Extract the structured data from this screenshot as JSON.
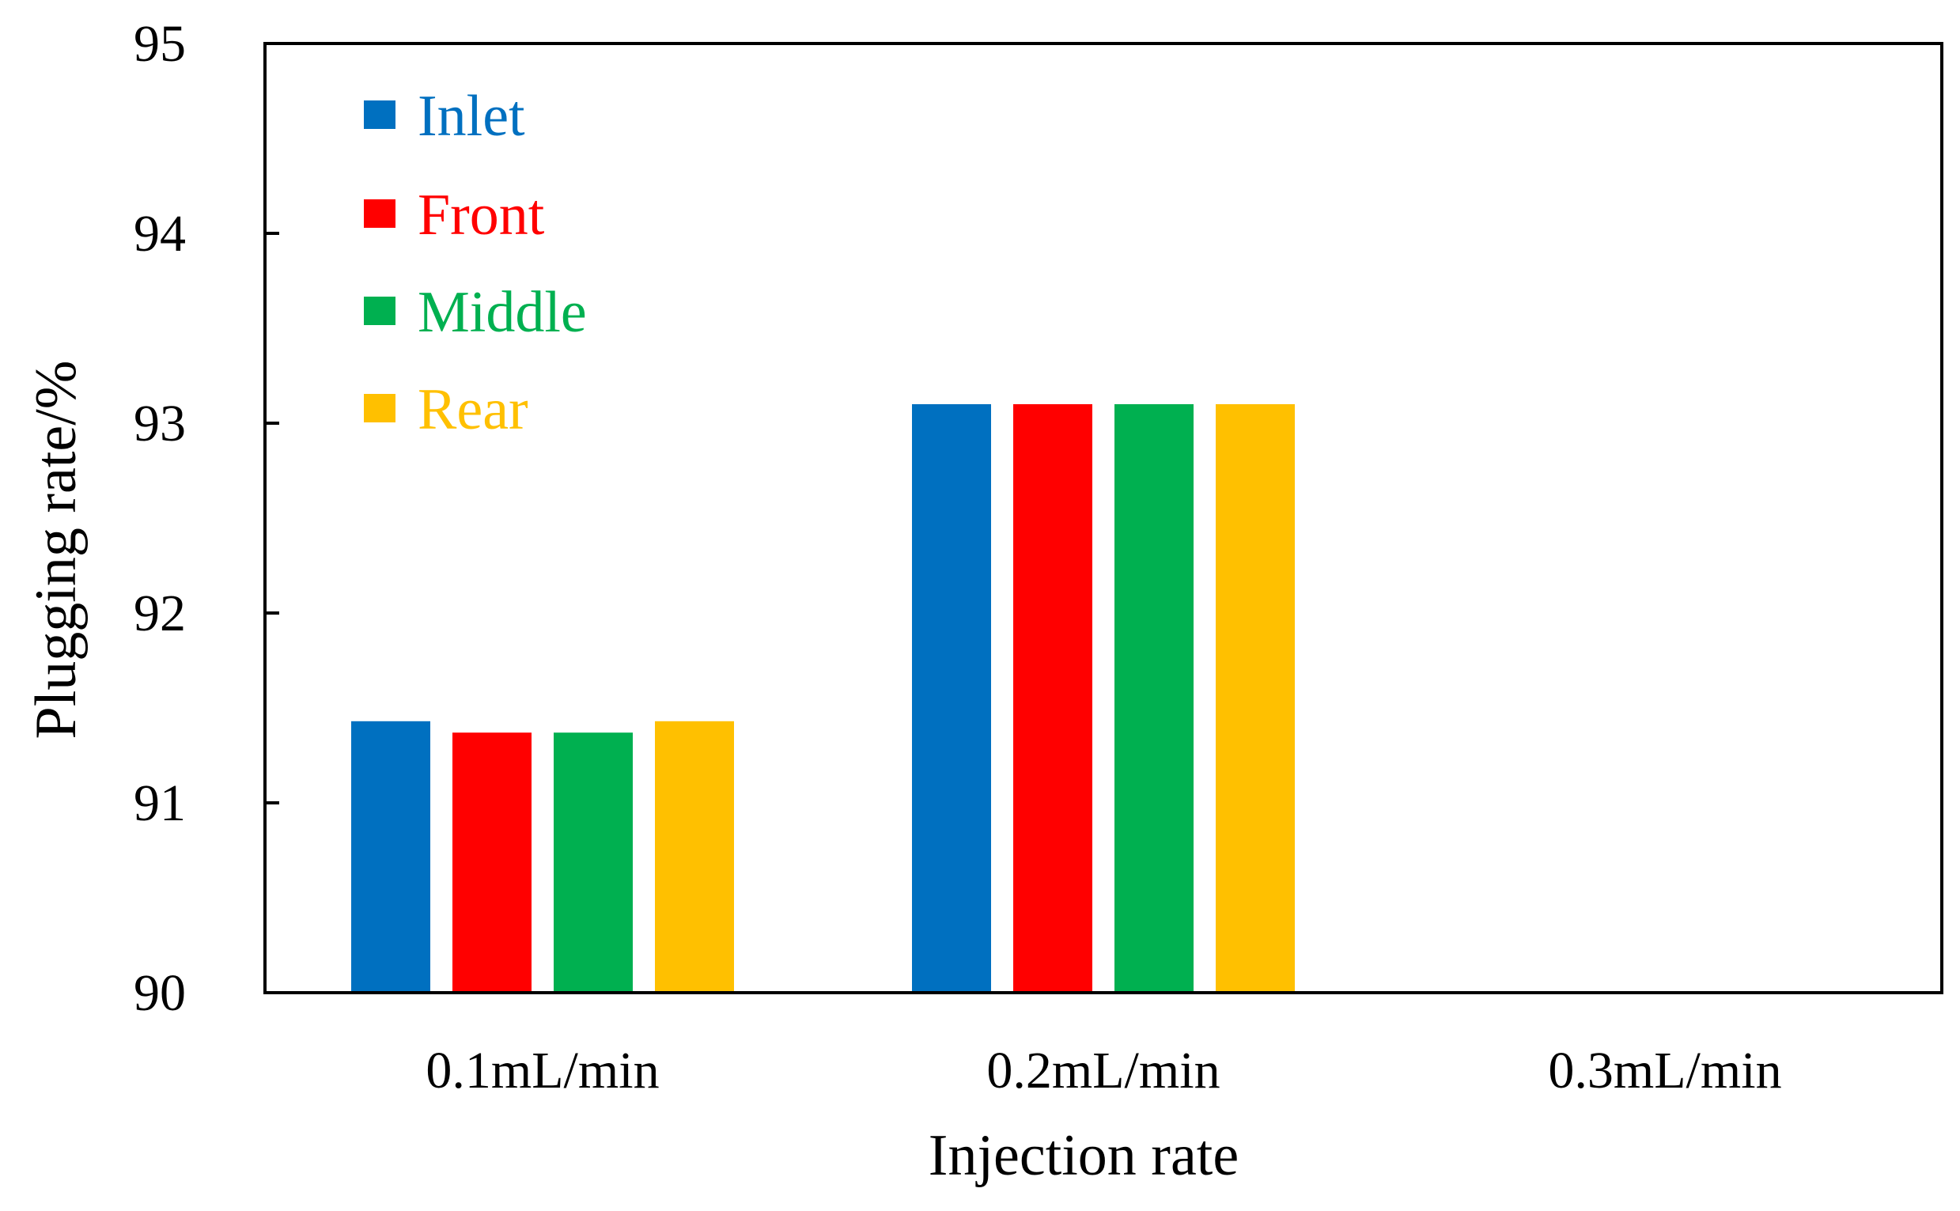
{
  "chart_data": {
    "type": "bar",
    "title": "",
    "xlabel": "Injection rate",
    "ylabel": "Plugging rate/%",
    "categories": [
      "0.1mL/min",
      "0.2mL/min",
      "0.3mL/min"
    ],
    "ylim": [
      90,
      95
    ],
    "yticks": [
      "90",
      "91",
      "92",
      "93",
      "94",
      "95"
    ],
    "grid": false,
    "legend_position": "top-left",
    "series": [
      {
        "name": "Inlet",
        "color": "#0070C0",
        "values": [
          91.43,
          93.1,
          null
        ]
      },
      {
        "name": "Front",
        "color": "#FF0000",
        "values": [
          91.37,
          93.1,
          null
        ]
      },
      {
        "name": "Middle",
        "color": "#00B050",
        "values": [
          91.37,
          93.1,
          null
        ]
      },
      {
        "name": "Rear",
        "color": "#FFC000",
        "values": [
          91.43,
          93.1,
          null
        ]
      }
    ]
  }
}
